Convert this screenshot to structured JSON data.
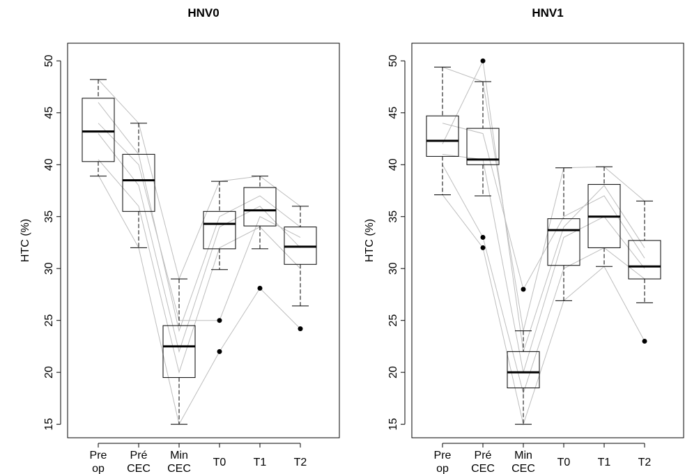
{
  "chart_data": [
    {
      "type": "boxplot",
      "title": "HNV0",
      "y_label": "HTC (%)",
      "categories": [
        "Pre op",
        "Pré CEC",
        "Min CEC",
        "T0",
        "T1",
        "T2"
      ],
      "ylim": [
        13.7,
        51.7
      ],
      "yticks": [
        15,
        20,
        25,
        30,
        35,
        40,
        45,
        50
      ],
      "box_color": "#000000",
      "line_color": "#bdbdbd",
      "boxes": [
        {
          "min": 38.9,
          "q1": 40.3,
          "median": 43.2,
          "q3": 46.4,
          "max": 48.2,
          "outliers": []
        },
        {
          "min": 32,
          "q1": 35.5,
          "median": 38.5,
          "q3": 41,
          "max": 44,
          "outliers": []
        },
        {
          "min": 15,
          "q1": 19.5,
          "median": 22.5,
          "q3": 24.5,
          "max": 29,
          "outliers": []
        },
        {
          "min": 29.9,
          "q1": 31.9,
          "median": 34.3,
          "q3": 35.5,
          "max": 38.4,
          "outliers": [
            25,
            22
          ]
        },
        {
          "min": 31.9,
          "q1": 34.1,
          "median": 35.6,
          "q3": 37.8,
          "max": 38.9,
          "outliers": [
            28.1
          ]
        },
        {
          "min": 26.4,
          "q1": 30.4,
          "median": 32.1,
          "q3": 34,
          "max": 36,
          "outliers": [
            24.2
          ]
        }
      ],
      "individuals": [
        [
          48.2,
          44,
          29,
          38.4,
          38.9,
          36
        ],
        [
          46,
          41,
          24,
          35,
          37,
          34
        ],
        [
          43,
          38,
          22,
          34,
          36,
          32
        ],
        [
          40.5,
          36,
          20,
          32,
          34,
          30
        ],
        [
          39,
          32,
          15,
          22,
          28.1,
          24.2
        ],
        [
          44,
          40,
          25,
          25,
          35,
          33
        ]
      ]
    },
    {
      "type": "boxplot",
      "title": "HNV1",
      "y_label": "HTC (%)",
      "categories": [
        "Pre op",
        "Pré CEC",
        "Min CEC",
        "T0",
        "T1",
        "T2"
      ],
      "ylim": [
        13.7,
        51.7
      ],
      "yticks": [
        15,
        20,
        25,
        30,
        35,
        40,
        45,
        50
      ],
      "box_color": "#000000",
      "line_color": "#bdbdbd",
      "boxes": [
        {
          "min": 37.1,
          "q1": 40.8,
          "median": 42.3,
          "q3": 44.7,
          "max": 49.4,
          "outliers": []
        },
        {
          "min": 37,
          "q1": 40,
          "median": 40.5,
          "q3": 43.5,
          "max": 48,
          "outliers": [
            50,
            33,
            32
          ]
        },
        {
          "min": 15,
          "q1": 18.5,
          "median": 20,
          "q3": 22,
          "max": 24,
          "outliers": [
            28
          ]
        },
        {
          "min": 26.9,
          "q1": 30.3,
          "median": 33.7,
          "q3": 34.8,
          "max": 39.7,
          "outliers": []
        },
        {
          "min": 30.2,
          "q1": 32,
          "median": 35,
          "q3": 38.1,
          "max": 39.8,
          "outliers": []
        },
        {
          "min": 26.7,
          "q1": 29,
          "median": 30.2,
          "q3": 32.7,
          "max": 36.5,
          "outliers": [
            23
          ]
        }
      ],
      "individuals": [
        [
          49.4,
          48,
          24,
          39.7,
          39.8,
          36.5
        ],
        [
          42,
          50,
          22,
          34,
          38,
          32
        ],
        [
          41,
          40.5,
          20,
          33,
          35,
          30
        ],
        [
          40,
          33,
          18,
          30,
          32,
          29
        ],
        [
          37.1,
          32,
          15,
          26.9,
          30.2,
          23
        ],
        [
          44,
          43,
          28,
          35,
          37,
          31
        ]
      ]
    }
  ]
}
